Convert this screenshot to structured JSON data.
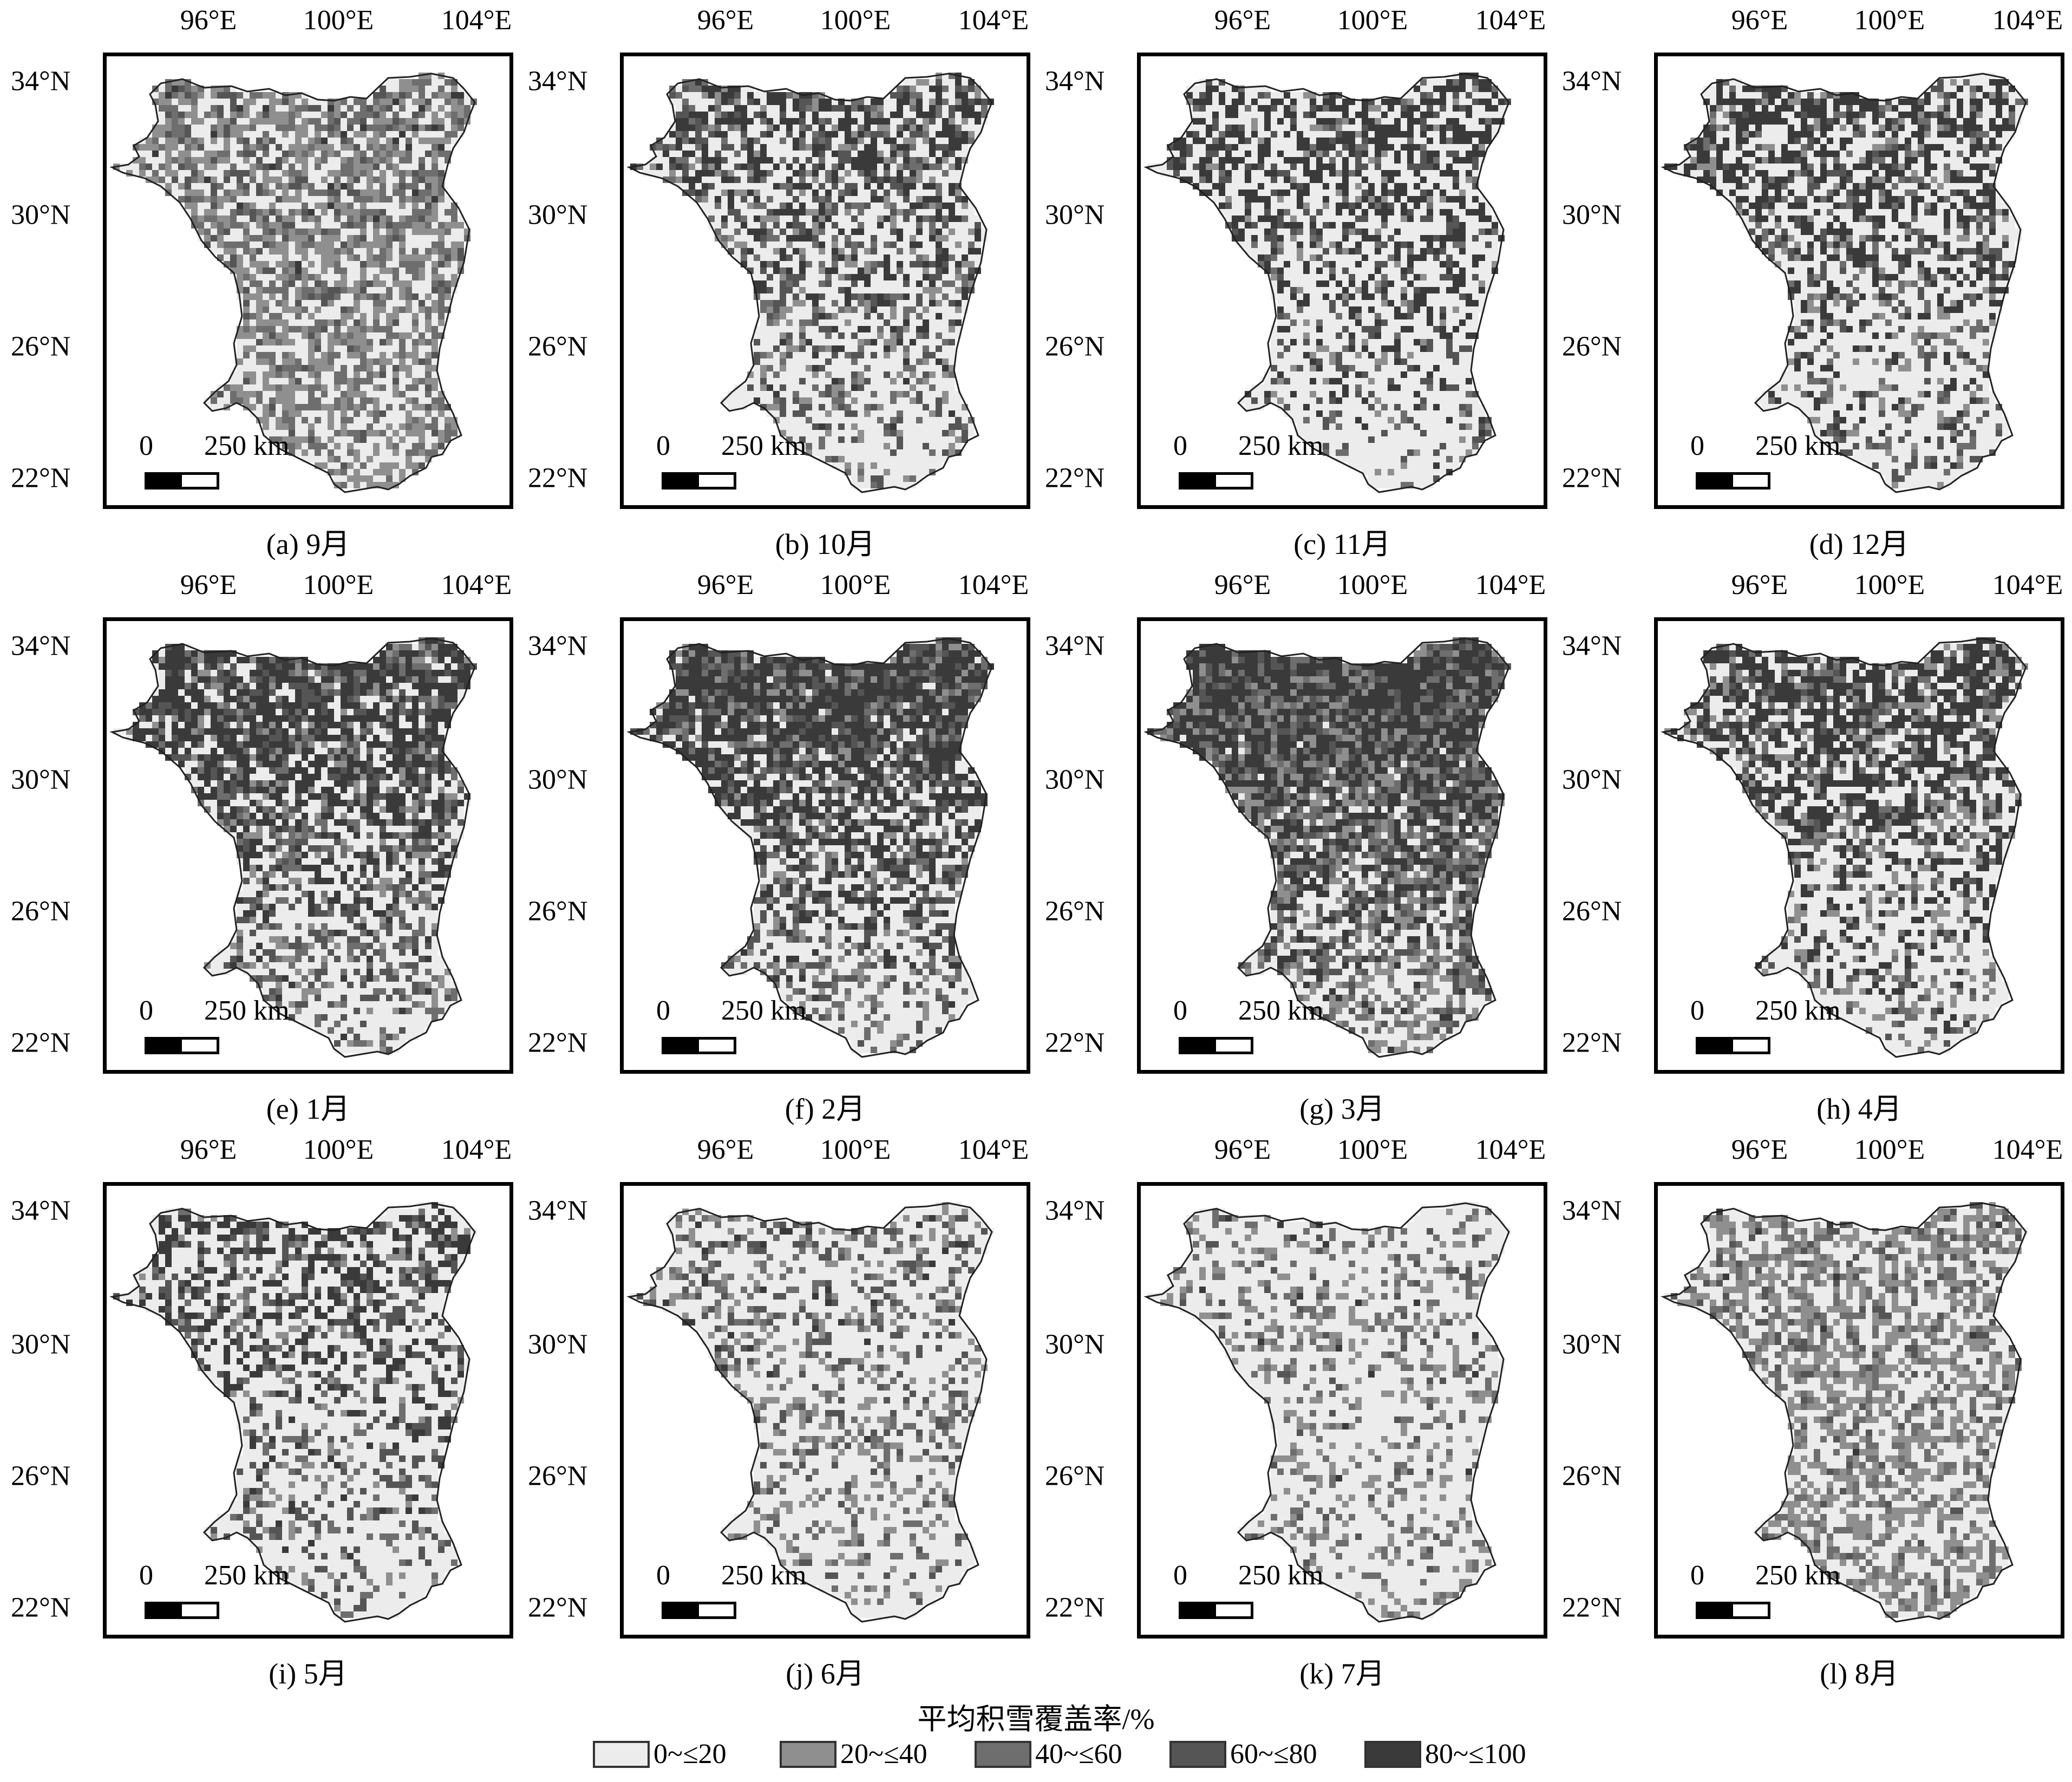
{
  "lon_labels": [
    "96°E",
    "100°E",
    "104°E"
  ],
  "lat_labels": [
    "34°N",
    "30°N",
    "26°N",
    "22°N"
  ],
  "scale": {
    "zero": "0",
    "distance": "250 km"
  },
  "panels": [
    {
      "caption": "(a) 9月",
      "class_fraction": [
        0.35,
        0.3,
        0.2,
        0.1,
        0.05
      ]
    },
    {
      "caption": "(b) 10月",
      "class_fraction": [
        0.45,
        0.08,
        0.07,
        0.1,
        0.3
      ]
    },
    {
      "caption": "(c) 11月",
      "class_fraction": [
        0.5,
        0.04,
        0.03,
        0.08,
        0.35
      ]
    },
    {
      "caption": "(d) 12月",
      "class_fraction": [
        0.47,
        0.06,
        0.05,
        0.07,
        0.35
      ]
    },
    {
      "caption": "(e) 1月",
      "class_fraction": [
        0.35,
        0.07,
        0.08,
        0.1,
        0.4
      ]
    },
    {
      "caption": "(f) 2月",
      "class_fraction": [
        0.3,
        0.08,
        0.07,
        0.1,
        0.45
      ]
    },
    {
      "caption": "(g) 3月",
      "class_fraction": [
        0.2,
        0.15,
        0.12,
        0.08,
        0.45
      ]
    },
    {
      "caption": "(h) 4月",
      "class_fraction": [
        0.4,
        0.1,
        0.05,
        0.05,
        0.4
      ]
    },
    {
      "caption": "(i) 5月",
      "class_fraction": [
        0.55,
        0.05,
        0.05,
        0.1,
        0.25
      ]
    },
    {
      "caption": "(j) 6月",
      "class_fraction": [
        0.65,
        0.12,
        0.08,
        0.1,
        0.05
      ]
    },
    {
      "caption": "(k) 7月",
      "class_fraction": [
        0.7,
        0.15,
        0.1,
        0.04,
        0.01
      ]
    },
    {
      "caption": "(l) 8月",
      "class_fraction": [
        0.45,
        0.3,
        0.15,
        0.08,
        0.02
      ]
    }
  ],
  "legend": {
    "title": "平均积雪覆盖率/%",
    "items": [
      {
        "label": "0~≤20",
        "color": "#ececec"
      },
      {
        "label": "20~≤40",
        "color": "#8f8f8f"
      },
      {
        "label": "40~≤60",
        "color": "#6e6e6e"
      },
      {
        "label": "60~≤80",
        "color": "#555555"
      },
      {
        "label": "80~≤100",
        "color": "#3a3a3a"
      }
    ]
  }
}
